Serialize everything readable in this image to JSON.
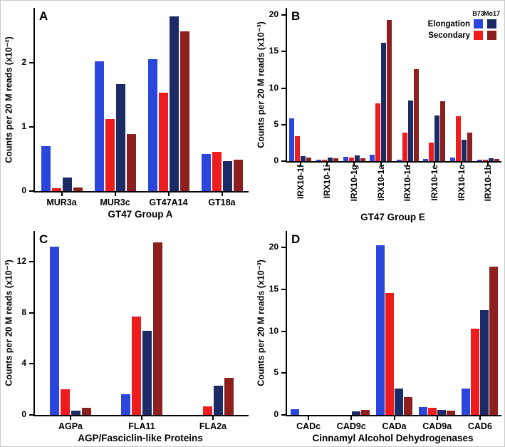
{
  "figure": {
    "background": "#ffffff",
    "border_color": "#c9c9c9"
  },
  "colors": {
    "axis": "#000000",
    "b73_elongation": "#2a46dd",
    "b73_secondary": "#ee1c1c",
    "mo17_elongation": "#1c2a66",
    "mo17_secondary": "#8e1f1f"
  },
  "legend": {
    "columns": [
      "B73",
      "Mo17"
    ],
    "rows": [
      {
        "label": "Elongation",
        "swatch_keys": [
          "b73_elongation",
          "mo17_elongation"
        ]
      },
      {
        "label": "Secondary",
        "swatch_keys": [
          "b73_secondary",
          "mo17_secondary"
        ]
      }
    ]
  },
  "chart_data": [
    {
      "panel": "A",
      "type": "bar",
      "xlabel": "GT47 Group A",
      "ylabel": "Counts per 20 M reads (x10⁻²)",
      "ylim": [
        0,
        2.85
      ],
      "yticks": [
        0,
        1,
        2
      ],
      "xtick_rotation": 0,
      "show_legend": false,
      "categories": [
        "MUR3a",
        "MUR3c",
        "GT47A14",
        "GT18a"
      ],
      "series": [
        {
          "name": "B73 Elongation",
          "color_key": "b73_elongation",
          "values": [
            0.7,
            2.02,
            2.05,
            0.58
          ]
        },
        {
          "name": "B73 Secondary",
          "color_key": "b73_secondary",
          "values": [
            0.04,
            1.12,
            1.53,
            0.61
          ]
        },
        {
          "name": "Mo17 Elongation",
          "color_key": "mo17_elongation",
          "values": [
            0.21,
            1.66,
            2.72,
            0.47
          ]
        },
        {
          "name": "Mo17 Secondary",
          "color_key": "mo17_secondary",
          "values": [
            0.06,
            0.89,
            2.49,
            0.49
          ]
        }
      ]
    },
    {
      "panel": "B",
      "type": "bar",
      "xlabel": "GT47 Group E",
      "ylabel": "Counts per 20 M reads (x10⁻³)",
      "ylim": [
        0,
        21
      ],
      "yticks": [
        0,
        5,
        10,
        15,
        20
      ],
      "xtick_rotation": 90,
      "show_legend": true,
      "categories": [
        "IRX10-1f",
        "IRX10-1i",
        "IRX10-1g",
        "IRX10-1a",
        "IRX10-1d",
        "IRX10-1e",
        "IRX10-1c",
        "IRX10-1b"
      ],
      "series": [
        {
          "name": "B73 Elongation",
          "color_key": "b73_elongation",
          "values": [
            5.9,
            0.2,
            0.6,
            0.9,
            0.2,
            0.3,
            0.5,
            0.1
          ]
        },
        {
          "name": "B73 Secondary",
          "color_key": "b73_secondary",
          "values": [
            3.4,
            0.1,
            0.5,
            7.9,
            3.9,
            2.5,
            6.2,
            0.15
          ]
        },
        {
          "name": "Mo17 Elongation",
          "color_key": "mo17_elongation",
          "values": [
            0.7,
            0.45,
            0.75,
            16.2,
            8.3,
            6.3,
            2.9,
            0.35
          ]
        },
        {
          "name": "Mo17 Secondary",
          "color_key": "mo17_secondary",
          "values": [
            0.5,
            0.4,
            0.35,
            19.3,
            12.6,
            8.2,
            3.9,
            0.25
          ]
        }
      ]
    },
    {
      "panel": "C",
      "type": "bar",
      "xlabel": "AGP/Fasciclin-like Proteins",
      "ylabel": "Counts per 20 M reads (x10⁻³)",
      "ylim": [
        0,
        14.4
      ],
      "yticks": [
        0,
        4,
        8,
        12
      ],
      "xtick_rotation": 0,
      "show_legend": false,
      "categories": [
        "AGPa",
        "FLA11",
        "FLA2a"
      ],
      "series": [
        {
          "name": "B73 Elongation",
          "color_key": "b73_elongation",
          "values": [
            13.2,
            1.6,
            0
          ]
        },
        {
          "name": "B73 Secondary",
          "color_key": "b73_secondary",
          "values": [
            2.0,
            7.7,
            0.65
          ]
        },
        {
          "name": "Mo17 Elongation",
          "color_key": "mo17_elongation",
          "values": [
            0.35,
            6.6,
            2.3
          ]
        },
        {
          "name": "Mo17 Secondary",
          "color_key": "mo17_secondary",
          "values": [
            0.55,
            13.5,
            2.9
          ]
        }
      ]
    },
    {
      "panel": "D",
      "type": "bar",
      "xlabel": "Cinnamyl Alcohol Dehydrogenases",
      "ylabel": "Counts per 20 M reads (x10⁻³)",
      "ylim": [
        0,
        22
      ],
      "yticks": [
        0,
        5,
        10,
        15,
        20
      ],
      "xtick_rotation": 0,
      "show_legend": false,
      "categories": [
        "CADc",
        "CAD9c",
        "CADa",
        "CAD9a",
        "CAD6"
      ],
      "series": [
        {
          "name": "B73 Elongation",
          "color_key": "b73_elongation",
          "values": [
            0.7,
            0,
            20.3,
            0.9,
            3.2
          ]
        },
        {
          "name": "B73 Secondary",
          "color_key": "b73_secondary",
          "values": [
            0,
            0,
            14.6,
            0.85,
            10.3
          ]
        },
        {
          "name": "Mo17 Elongation",
          "color_key": "mo17_elongation",
          "values": [
            0,
            0.45,
            3.2,
            0.6,
            12.5
          ]
        },
        {
          "name": "Mo17 Secondary",
          "color_key": "mo17_secondary",
          "values": [
            0,
            0.6,
            2.1,
            0.55,
            17.7
          ]
        }
      ]
    }
  ]
}
